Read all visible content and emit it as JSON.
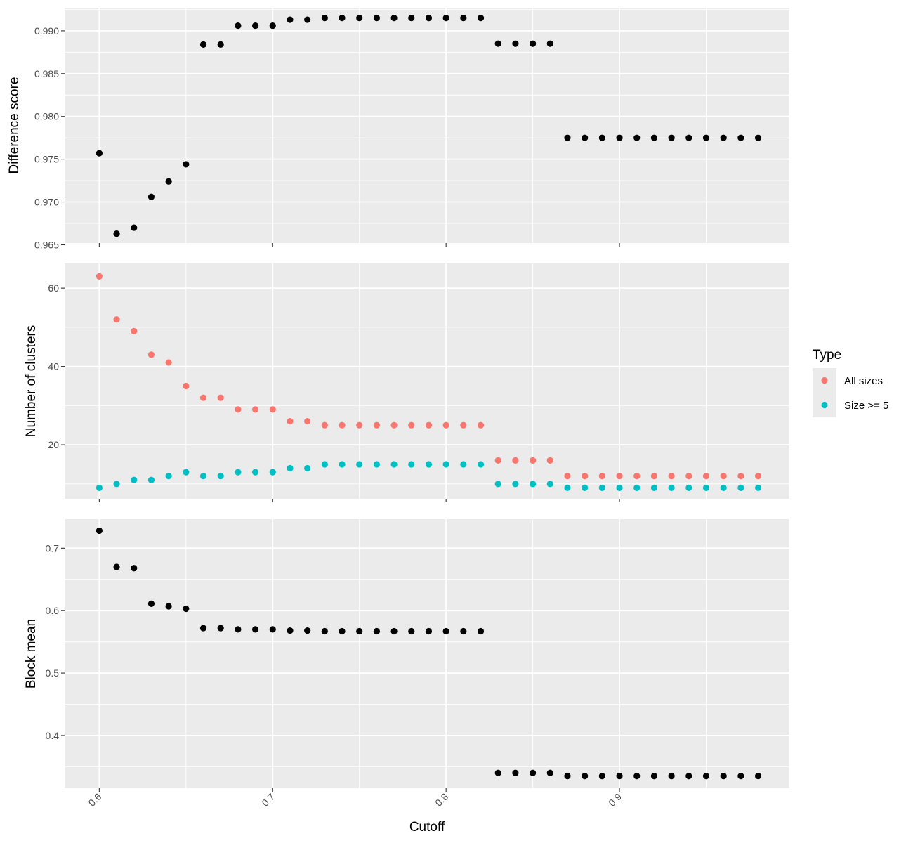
{
  "chart_data": {
    "type": "scatter",
    "xlabel": "Cutoff",
    "x_ticks": [
      0.6,
      0.7,
      0.8,
      0.9
    ],
    "x_tick_labels": [
      "0.6",
      "0.7",
      "0.8",
      "0.9"
    ],
    "xlim": [
      0.58,
      0.998
    ],
    "x": [
      0.6,
      0.61,
      0.62,
      0.63,
      0.64,
      0.65,
      0.66,
      0.67,
      0.68,
      0.69,
      0.7,
      0.71,
      0.72,
      0.73,
      0.74,
      0.75,
      0.76,
      0.77,
      0.78,
      0.79,
      0.8,
      0.81,
      0.82,
      0.83,
      0.84,
      0.85,
      0.86,
      0.87,
      0.88,
      0.89,
      0.9,
      0.91,
      0.92,
      0.93,
      0.94,
      0.95,
      0.96,
      0.97,
      0.98
    ],
    "grid": true,
    "legend": {
      "title": "Type",
      "position": "right",
      "entries": [
        {
          "label": "All sizes",
          "color": "#F8766D"
        },
        {
          "label": "Size >= 5",
          "color": "#00BFC4"
        }
      ]
    },
    "panels": [
      {
        "ylabel": "Difference score",
        "ylim": [
          0.9652,
          0.9927
        ],
        "y_ticks": [
          0.965,
          0.97,
          0.975,
          0.98,
          0.985,
          0.99
        ],
        "y_tick_labels": [
          "0.965",
          "0.970",
          "0.975",
          "0.980",
          "0.985",
          "0.990"
        ],
        "series": [
          {
            "color": "#000000",
            "values": [
              0.9757,
              0.9663,
              0.967,
              0.9706,
              0.9724,
              0.9744,
              0.9884,
              0.9884,
              0.9906,
              0.9906,
              0.9906,
              0.9913,
              0.9913,
              0.9915,
              0.9915,
              0.9915,
              0.9915,
              0.9915,
              0.9915,
              0.9915,
              0.9915,
              0.9915,
              0.9915,
              0.9885,
              0.9885,
              0.9885,
              0.9885,
              0.9775,
              0.9775,
              0.9775,
              0.9775,
              0.9775,
              0.9775,
              0.9775,
              0.9775,
              0.9775,
              0.9775,
              0.9775,
              0.9775
            ]
          }
        ]
      },
      {
        "ylabel": "Number of clusters",
        "ylim": [
          6.2,
          66.3
        ],
        "y_ticks": [
          20,
          40,
          60
        ],
        "y_tick_labels": [
          "20",
          "40",
          "60"
        ],
        "series": [
          {
            "name": "All sizes",
            "color": "#F8766D",
            "values": [
              63,
              52,
              49,
              43,
              41,
              35,
              32,
              32,
              29,
              29,
              29,
              26,
              26,
              25,
              25,
              25,
              25,
              25,
              25,
              25,
              25,
              25,
              25,
              16,
              16,
              16,
              16,
              12,
              12,
              12,
              12,
              12,
              12,
              12,
              12,
              12,
              12,
              12,
              12
            ]
          },
          {
            "name": "Size >= 5",
            "color": "#00BFC4",
            "values": [
              9,
              10,
              11,
              11,
              12,
              13,
              12,
              12,
              13,
              13,
              13,
              14,
              14,
              15,
              15,
              15,
              15,
              15,
              15,
              15,
              15,
              15,
              15,
              10,
              10,
              10,
              10,
              9,
              9,
              9,
              9,
              9,
              9,
              9,
              9,
              9,
              9,
              9,
              9
            ]
          }
        ]
      },
      {
        "ylabel": "Block mean",
        "ylim": [
          0.3155,
          0.7465
        ],
        "y_ticks": [
          0.4,
          0.5,
          0.6,
          0.7
        ],
        "y_tick_labels": [
          "0.4",
          "0.5",
          "0.6",
          "0.7"
        ],
        "series": [
          {
            "color": "#000000",
            "values": [
              0.728,
              0.67,
              0.668,
              0.611,
              0.607,
              0.603,
              0.572,
              0.572,
              0.57,
              0.57,
              0.57,
              0.568,
              0.568,
              0.567,
              0.567,
              0.567,
              0.567,
              0.567,
              0.567,
              0.567,
              0.567,
              0.567,
              0.567,
              0.34,
              0.34,
              0.34,
              0.34,
              0.335,
              0.335,
              0.335,
              0.335,
              0.335,
              0.335,
              0.335,
              0.335,
              0.335,
              0.335,
              0.335,
              0.335
            ]
          }
        ]
      }
    ]
  }
}
